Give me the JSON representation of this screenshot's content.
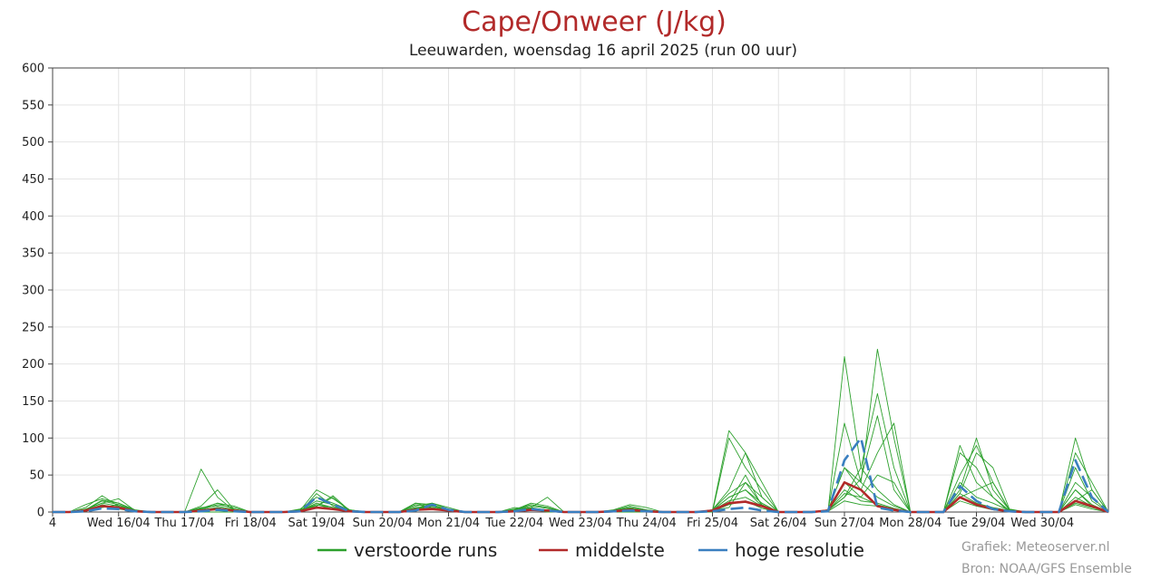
{
  "chart_data": {
    "type": "line",
    "title": "Cape/Onweer (J/kg)",
    "subtitle": "Leeuwarden, woensdag 16 april 2025 (run 00 uur)",
    "ylim": [
      0,
      600
    ],
    "yticks": [
      0,
      50,
      100,
      150,
      200,
      250,
      300,
      350,
      400,
      450,
      500,
      550,
      600
    ],
    "xlim": [
      0,
      64
    ],
    "x_tick_labels": [
      {
        "x": 0,
        "label": "4"
      },
      {
        "x": 4,
        "label": "Wed 16/04"
      },
      {
        "x": 8,
        "label": "Thu 17/04"
      },
      {
        "x": 12,
        "label": "Fri 18/04"
      },
      {
        "x": 16,
        "label": "Sat 19/04"
      },
      {
        "x": 20,
        "label": "Sun 20/04"
      },
      {
        "x": 24,
        "label": "Mon 21/04"
      },
      {
        "x": 28,
        "label": "Tue 22/04"
      },
      {
        "x": 32,
        "label": "Wed 23/04"
      },
      {
        "x": 36,
        "label": "Thu 24/04"
      },
      {
        "x": 40,
        "label": "Fri 25/04"
      },
      {
        "x": 44,
        "label": "Sat 26/04"
      },
      {
        "x": 48,
        "label": "Sun 27/04"
      },
      {
        "x": 52,
        "label": "Mon 28/04"
      },
      {
        "x": 56,
        "label": "Tue 29/04"
      },
      {
        "x": 60,
        "label": "Wed 30/04"
      }
    ],
    "x_step_hours": 6,
    "grid": true,
    "legend_placement": "bottom-center",
    "series": [
      {
        "name": "verstoorde runs",
        "color": "#2ca02c",
        "width": 0.9,
        "dashed": false,
        "values": [
          [
            0,
            0,
            10,
            18,
            12,
            3,
            0,
            0,
            0,
            5,
            12,
            8,
            0,
            0,
            0,
            4,
            20,
            12,
            3,
            0,
            0,
            0,
            8,
            12,
            6,
            0,
            0,
            0,
            4,
            10,
            6,
            0,
            0,
            0,
            3,
            10,
            6,
            0,
            0,
            0,
            3,
            25,
            40,
            10,
            0,
            0,
            0,
            3,
            20,
            45,
            130,
            30,
            0,
            0,
            0,
            30,
            100,
            30,
            3,
            0,
            0,
            0,
            30,
            10,
            0
          ],
          [
            0,
            0,
            6,
            22,
            8,
            1,
            0,
            0,
            0,
            0,
            0,
            0,
            0,
            0,
            0,
            0,
            25,
            8,
            0,
            0,
            0,
            0,
            4,
            8,
            2,
            0,
            0,
            0,
            6,
            4,
            0,
            0,
            0,
            0,
            0,
            0,
            0,
            0,
            0,
            0,
            0,
            100,
            60,
            30,
            0,
            0,
            0,
            0,
            210,
            60,
            160,
            60,
            0,
            0,
            0,
            80,
            60,
            20,
            0,
            0,
            0,
            0,
            80,
            40,
            0
          ],
          [
            0,
            0,
            3,
            12,
            18,
            2,
            0,
            0,
            0,
            3,
            6,
            2,
            0,
            0,
            0,
            3,
            8,
            22,
            2,
            0,
            0,
            0,
            12,
            10,
            3,
            0,
            0,
            0,
            3,
            6,
            2,
            0,
            0,
            0,
            2,
            8,
            3,
            0,
            0,
            0,
            2,
            20,
            30,
            12,
            0,
            0,
            0,
            2,
            60,
            30,
            80,
            120,
            0,
            0,
            0,
            25,
            80,
            60,
            4,
            0,
            0,
            0,
            100,
            30,
            0
          ],
          [
            0,
            0,
            2,
            8,
            6,
            1,
            0,
            0,
            0,
            58,
            20,
            2,
            0,
            0,
            0,
            2,
            12,
            6,
            2,
            0,
            0,
            0,
            10,
            6,
            2,
            0,
            0,
            0,
            2,
            6,
            20,
            0,
            0,
            0,
            2,
            3,
            2,
            0,
            0,
            0,
            2,
            110,
            80,
            40,
            0,
            0,
            0,
            2,
            60,
            40,
            220,
            100,
            0,
            0,
            0,
            50,
            90,
            40,
            3,
            0,
            0,
            0,
            40,
            20,
            0
          ],
          [
            0,
            0,
            3,
            15,
            10,
            2,
            0,
            0,
            0,
            8,
            30,
            3,
            0,
            0,
            0,
            3,
            10,
            4,
            1,
            0,
            0,
            0,
            12,
            6,
            2,
            0,
            0,
            0,
            2,
            10,
            6,
            0,
            0,
            0,
            2,
            5,
            2,
            0,
            0,
            0,
            3,
            30,
            80,
            20,
            0,
            0,
            0,
            2,
            40,
            20,
            50,
            40,
            0,
            0,
            0,
            90,
            40,
            20,
            2,
            0,
            0,
            0,
            60,
            15,
            0
          ],
          [
            0,
            0,
            4,
            12,
            8,
            2,
            0,
            0,
            0,
            4,
            12,
            4,
            0,
            0,
            0,
            2,
            30,
            18,
            3,
            0,
            0,
            0,
            4,
            12,
            4,
            0,
            0,
            0,
            3,
            12,
            8,
            0,
            0,
            0,
            2,
            6,
            2,
            0,
            0,
            0,
            2,
            20,
            30,
            8,
            0,
            0,
            0,
            2,
            120,
            40,
            20,
            8,
            0,
            0,
            0,
            40,
            20,
            12,
            2,
            0,
            0,
            0,
            30,
            8,
            0
          ],
          [
            0,
            0,
            2,
            10,
            5,
            1,
            0,
            0,
            0,
            2,
            4,
            2,
            0,
            0,
            0,
            1,
            6,
            4,
            1,
            0,
            0,
            0,
            3,
            4,
            2,
            0,
            0,
            0,
            2,
            4,
            3,
            0,
            0,
            0,
            1,
            3,
            2,
            0,
            0,
            0,
            2,
            6,
            40,
            20,
            0,
            0,
            0,
            2,
            20,
            60,
            30,
            10,
            0,
            0,
            0,
            20,
            30,
            40,
            2,
            0,
            0,
            0,
            15,
            30,
            0
          ],
          [
            0,
            0,
            3,
            16,
            12,
            2,
            0,
            0,
            0,
            6,
            8,
            3,
            0,
            0,
            0,
            2,
            15,
            10,
            2,
            0,
            0,
            0,
            6,
            8,
            3,
            0,
            0,
            0,
            2,
            8,
            5,
            0,
            0,
            0,
            2,
            6,
            2,
            0,
            0,
            0,
            2,
            15,
            20,
            8,
            0,
            0,
            0,
            3,
            30,
            15,
            12,
            5,
            0,
            0,
            0,
            25,
            12,
            6,
            2,
            0,
            0,
            0,
            20,
            8,
            0
          ],
          [
            0,
            0,
            2,
            6,
            10,
            1,
            0,
            0,
            0,
            3,
            10,
            6,
            0,
            0,
            0,
            2,
            8,
            20,
            1,
            0,
            0,
            0,
            5,
            8,
            3,
            0,
            0,
            0,
            1,
            5,
            3,
            0,
            0,
            0,
            1,
            4,
            1,
            0,
            0,
            0,
            1,
            12,
            50,
            8,
            0,
            0,
            0,
            2,
            25,
            20,
            10,
            4,
            0,
            0,
            0,
            20,
            10,
            4,
            1,
            0,
            0,
            0,
            12,
            6,
            0
          ],
          [
            0,
            0,
            1,
            8,
            4,
            1,
            0,
            0,
            0,
            2,
            6,
            2,
            0,
            0,
            0,
            1,
            10,
            6,
            1,
            0,
            0,
            0,
            4,
            6,
            2,
            0,
            0,
            0,
            1,
            3,
            2,
            0,
            0,
            0,
            1,
            3,
            1,
            0,
            0,
            0,
            1,
            10,
            15,
            5,
            0,
            0,
            0,
            1,
            15,
            10,
            8,
            3,
            0,
            0,
            0,
            15,
            8,
            3,
            1,
            0,
            0,
            0,
            10,
            4,
            0
          ]
        ]
      },
      {
        "name": "middelste",
        "color": "#b22a2a",
        "width": 2.6,
        "dashed": false,
        "values": [
          [
            0,
            0,
            2,
            8,
            6,
            1,
            0,
            0,
            0,
            2,
            4,
            2,
            0,
            0,
            0,
            1,
            6,
            4,
            1,
            0,
            0,
            0,
            3,
            4,
            2,
            0,
            0,
            0,
            1,
            3,
            2,
            0,
            0,
            0,
            1,
            3,
            1,
            0,
            0,
            0,
            2,
            12,
            14,
            8,
            0,
            0,
            0,
            2,
            40,
            30,
            8,
            3,
            0,
            0,
            0,
            20,
            10,
            4,
            1,
            0,
            0,
            0,
            15,
            8,
            0
          ]
        ]
      },
      {
        "name": "hoge resolutie",
        "color": "#3a7fc0",
        "width": 2.6,
        "dashed": true,
        "values": [
          [
            0,
            0,
            1,
            5,
            4,
            1,
            0,
            0,
            0,
            1,
            3,
            1,
            0,
            0,
            0,
            1,
            20,
            10,
            1,
            0,
            0,
            0,
            2,
            10,
            3,
            0,
            0,
            0,
            1,
            4,
            2,
            0,
            0,
            0,
            1,
            2,
            1,
            0,
            0,
            0,
            1,
            4,
            6,
            2,
            0,
            0,
            0,
            1,
            70,
            100,
            6,
            2,
            0,
            0,
            0,
            35,
            15,
            4,
            1,
            0,
            0,
            0,
            70,
            20,
            0
          ]
        ]
      }
    ]
  },
  "legend": {
    "items": [
      {
        "label": "verstoorde runs",
        "color": "#2ca02c"
      },
      {
        "label": "middelste",
        "color": "#b22a2a"
      },
      {
        "label": "hoge resolutie",
        "color": "#3a7fc0"
      }
    ]
  },
  "credits": {
    "line1": "Grafiek: Meteoserver.nl",
    "line2": "Bron: NOAA/GFS Ensemble"
  }
}
